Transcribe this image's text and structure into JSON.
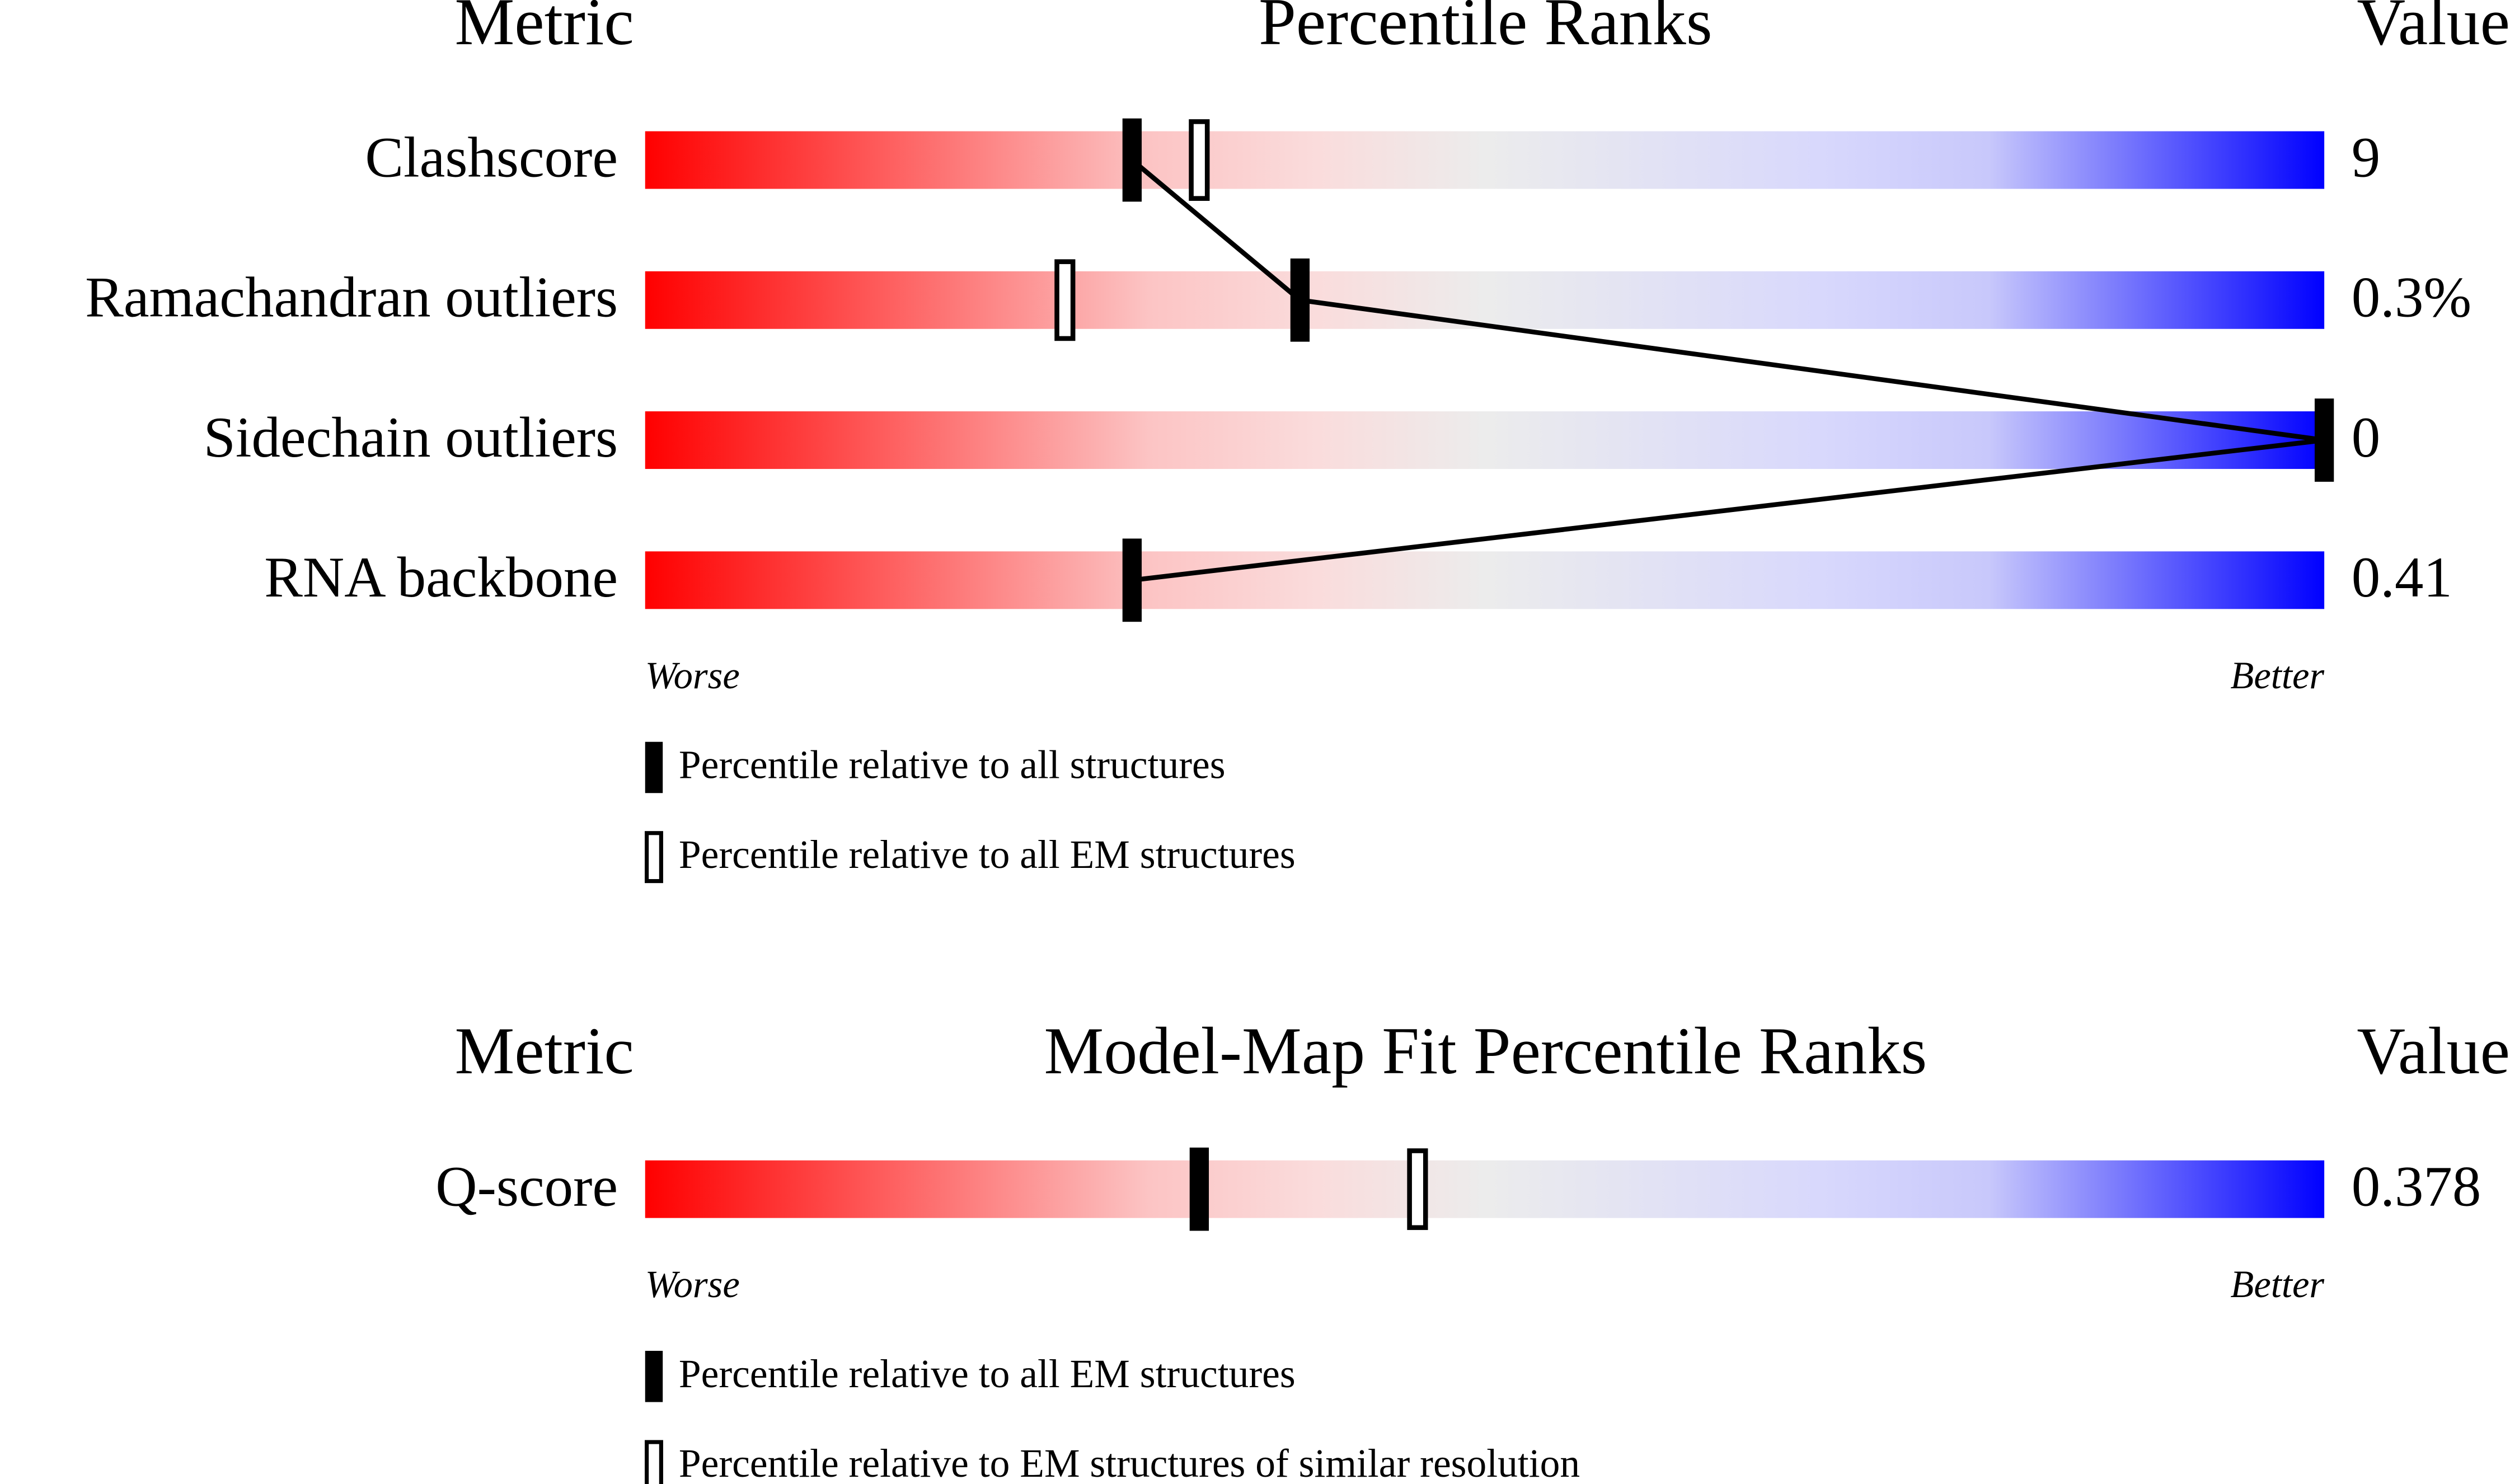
{
  "chart_data": [
    {
      "type": "slider",
      "metric_header": "Metric",
      "title": "Percentile Ranks",
      "value_header": "Value",
      "categories": [
        "Clashscore",
        "Ramachandran outliers",
        "Sidechain outliers",
        "RNA backbone"
      ],
      "metric_values": [
        "9",
        "0.3%",
        "0",
        "0.41"
      ],
      "xlim": [
        0,
        100
      ],
      "worse_label": "Worse",
      "better_label": "Better",
      "series": [
        {
          "name": "Percentile relative to all structures",
          "color": "#000000",
          "marker": "filled",
          "values": [
            29,
            39,
            100,
            29
          ]
        },
        {
          "name": "Percentile relative to all EM structures",
          "color": "#000000",
          "marker": "hollow",
          "values": [
            33,
            25,
            null,
            null
          ]
        }
      ]
    },
    {
      "type": "slider",
      "metric_header": "Metric",
      "title": "Model-Map Fit Percentile Ranks",
      "value_header": "Value",
      "categories": [
        "Q-score"
      ],
      "metric_values": [
        "0.378"
      ],
      "xlim": [
        0,
        100
      ],
      "worse_label": "Worse",
      "better_label": "Better",
      "series": [
        {
          "name": "Percentile relative to all EM structures",
          "color": "#000000",
          "marker": "filled",
          "values": [
            33
          ]
        },
        {
          "name": "Percentile relative to EM structures of similar resolution",
          "color": "#000000",
          "marker": "hollow",
          "values": [
            46
          ]
        }
      ]
    }
  ]
}
